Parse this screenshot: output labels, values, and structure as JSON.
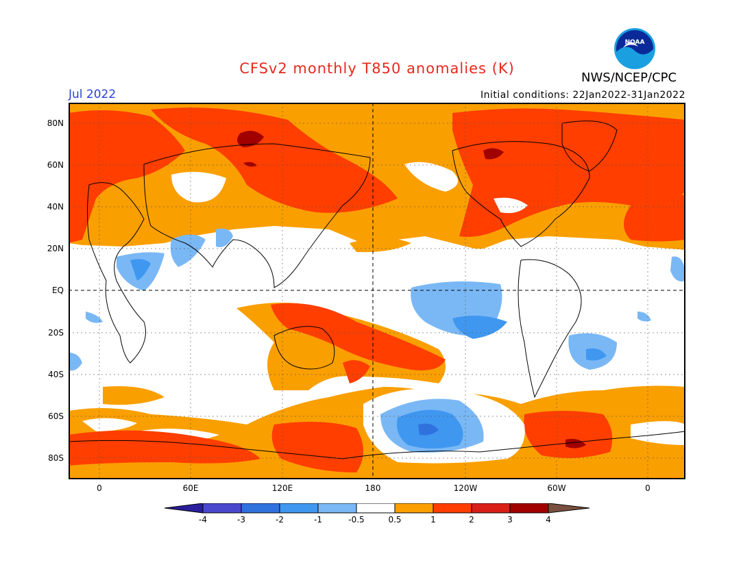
{
  "header": {
    "title": "CFSv2 monthly T850 anomalies (K)",
    "agency": "NWS/NCEP/CPC",
    "month": "Jul 2022",
    "initial_conditions": "Initial conditions: 22Jan2022-31Jan2022"
  },
  "logo": {
    "text": "NOAA"
  },
  "map": {
    "lat_labels": [
      "80N",
      "60N",
      "40N",
      "20N",
      "EQ",
      "20S",
      "40S",
      "60S",
      "80S"
    ],
    "lon_labels": [
      "0",
      "60E",
      "120E",
      "180",
      "120W",
      "60W",
      "0"
    ],
    "colors": {
      "neg4": "#2a1e9e",
      "neg3": "#4a48cc",
      "neg2": "#2f72dd",
      "neg1": "#3f97f0",
      "neg05": "#7ab8f5",
      "neutral": "#ffffff",
      "pos05": "#fa9f00",
      "pos1": "#ff3e00",
      "pos2": "#d82018",
      "pos3": "#a00000",
      "pos4": "#c8a090",
      "pos5": "#7a5040"
    }
  },
  "colorbar": {
    "labels": [
      "-4",
      "-3",
      "-2",
      "-1",
      "-0.5",
      "0.5",
      "1",
      "2",
      "3",
      "4"
    ]
  }
}
